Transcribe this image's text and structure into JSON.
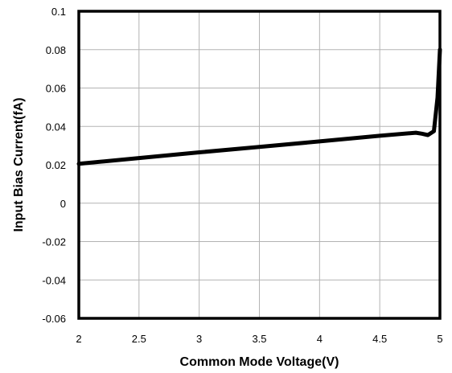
{
  "chart_data": {
    "type": "line",
    "xlabel": "Common Mode Voltage(V)",
    "ylabel": "Input Bias Current(fA)",
    "xlim": [
      2,
      5
    ],
    "ylim": [
      -0.06,
      0.1
    ],
    "x_ticks": [
      "2",
      "2.5",
      "3",
      "3.5",
      "4",
      "4.5",
      "5"
    ],
    "y_ticks": [
      "0.1",
      "0.08",
      "0.06",
      "0.04",
      "0.02",
      "0",
      "-0.02",
      "-0.04",
      "-0.06"
    ],
    "grid": true,
    "legend": "none",
    "series": [
      {
        "color": "#000000",
        "x": [
          2.0,
          2.5,
          3.0,
          3.5,
          4.0,
          4.5,
          4.8,
          4.85,
          4.9,
          4.95,
          4.98,
          5.0
        ],
        "y": [
          0.0205,
          0.0235,
          0.0265,
          0.0293,
          0.0322,
          0.0351,
          0.0367,
          0.0362,
          0.0355,
          0.0375,
          0.055,
          0.08
        ]
      }
    ]
  }
}
